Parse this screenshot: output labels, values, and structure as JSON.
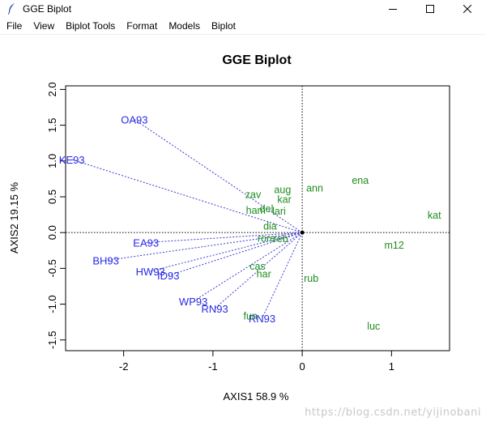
{
  "window": {
    "title": "GGE Biplot",
    "controls": [
      "minimize",
      "maximize",
      "close"
    ]
  },
  "menu": [
    {
      "label": "File"
    },
    {
      "label": "View"
    },
    {
      "label": "Biplot Tools"
    },
    {
      "label": "Format"
    },
    {
      "label": "Models"
    },
    {
      "label": "Biplot"
    }
  ],
  "watermark": "https://blog.csdn.net/yijinobani",
  "colors": {
    "environment": "#2a2ae6",
    "genotype": "#1e8c1e",
    "vector": "#3b3bd6"
  },
  "chart_data": {
    "type": "scatter",
    "title": "GGE Biplot",
    "xlabel": "AXIS1 58.9 %",
    "ylabel": "AXIS2 19.15 %",
    "xlim": [
      -2.65,
      1.65
    ],
    "ylim": [
      -1.65,
      2.05
    ],
    "xticks": [
      -2,
      -1,
      0,
      1
    ],
    "yticks": [
      -1.5,
      -1.0,
      -0.5,
      0.0,
      0.5,
      1.0,
      1.5,
      2.0
    ],
    "reference_lines": {
      "x": 0,
      "y": 0,
      "style": "dotted"
    },
    "origin": [
      0,
      0
    ],
    "environments": [
      {
        "label": "OA93",
        "x": -1.88,
        "y": 1.58
      },
      {
        "label": "KE93",
        "x": -2.58,
        "y": 1.02
      },
      {
        "label": "EA93",
        "x": -1.75,
        "y": -0.14
      },
      {
        "label": "BH93",
        "x": -2.2,
        "y": -0.39
      },
      {
        "label": "HW93",
        "x": -1.7,
        "y": -0.54
      },
      {
        "label": "ID93",
        "x": -1.5,
        "y": -0.6
      },
      {
        "label": "WP93",
        "x": -1.22,
        "y": -0.96
      },
      {
        "label": "RN93",
        "x": -0.98,
        "y": -1.06
      },
      {
        "label": "RN93",
        "x": -0.45,
        "y": -1.2
      }
    ],
    "genotypes": [
      {
        "label": "ann",
        "x": 0.14,
        "y": 0.63
      },
      {
        "label": "ena",
        "x": 0.65,
        "y": 0.74
      },
      {
        "label": "aug",
        "x": -0.22,
        "y": 0.61
      },
      {
        "label": "zav",
        "x": -0.55,
        "y": 0.54
      },
      {
        "label": "kar",
        "x": -0.2,
        "y": 0.47
      },
      {
        "label": "ham",
        "x": -0.52,
        "y": 0.32
      },
      {
        "label": "del",
        "x": -0.4,
        "y": 0.34
      },
      {
        "label": "lari",
        "x": -0.26,
        "y": 0.31
      },
      {
        "label": "kat",
        "x": 1.48,
        "y": 0.25
      },
      {
        "label": "dia",
        "x": -0.36,
        "y": 0.1
      },
      {
        "label": "rore",
        "x": -0.4,
        "y": -0.07
      },
      {
        "label": "reb",
        "x": -0.24,
        "y": -0.08
      },
      {
        "label": "m12",
        "x": 1.03,
        "y": -0.17
      },
      {
        "label": "cas",
        "x": -0.5,
        "y": -0.46
      },
      {
        "label": "har",
        "x": -0.43,
        "y": -0.57
      },
      {
        "label": "rub",
        "x": 0.1,
        "y": -0.63
      },
      {
        "label": "fun",
        "x": -0.58,
        "y": -1.16
      },
      {
        "label": "luc",
        "x": 0.8,
        "y": -1.3
      }
    ]
  }
}
